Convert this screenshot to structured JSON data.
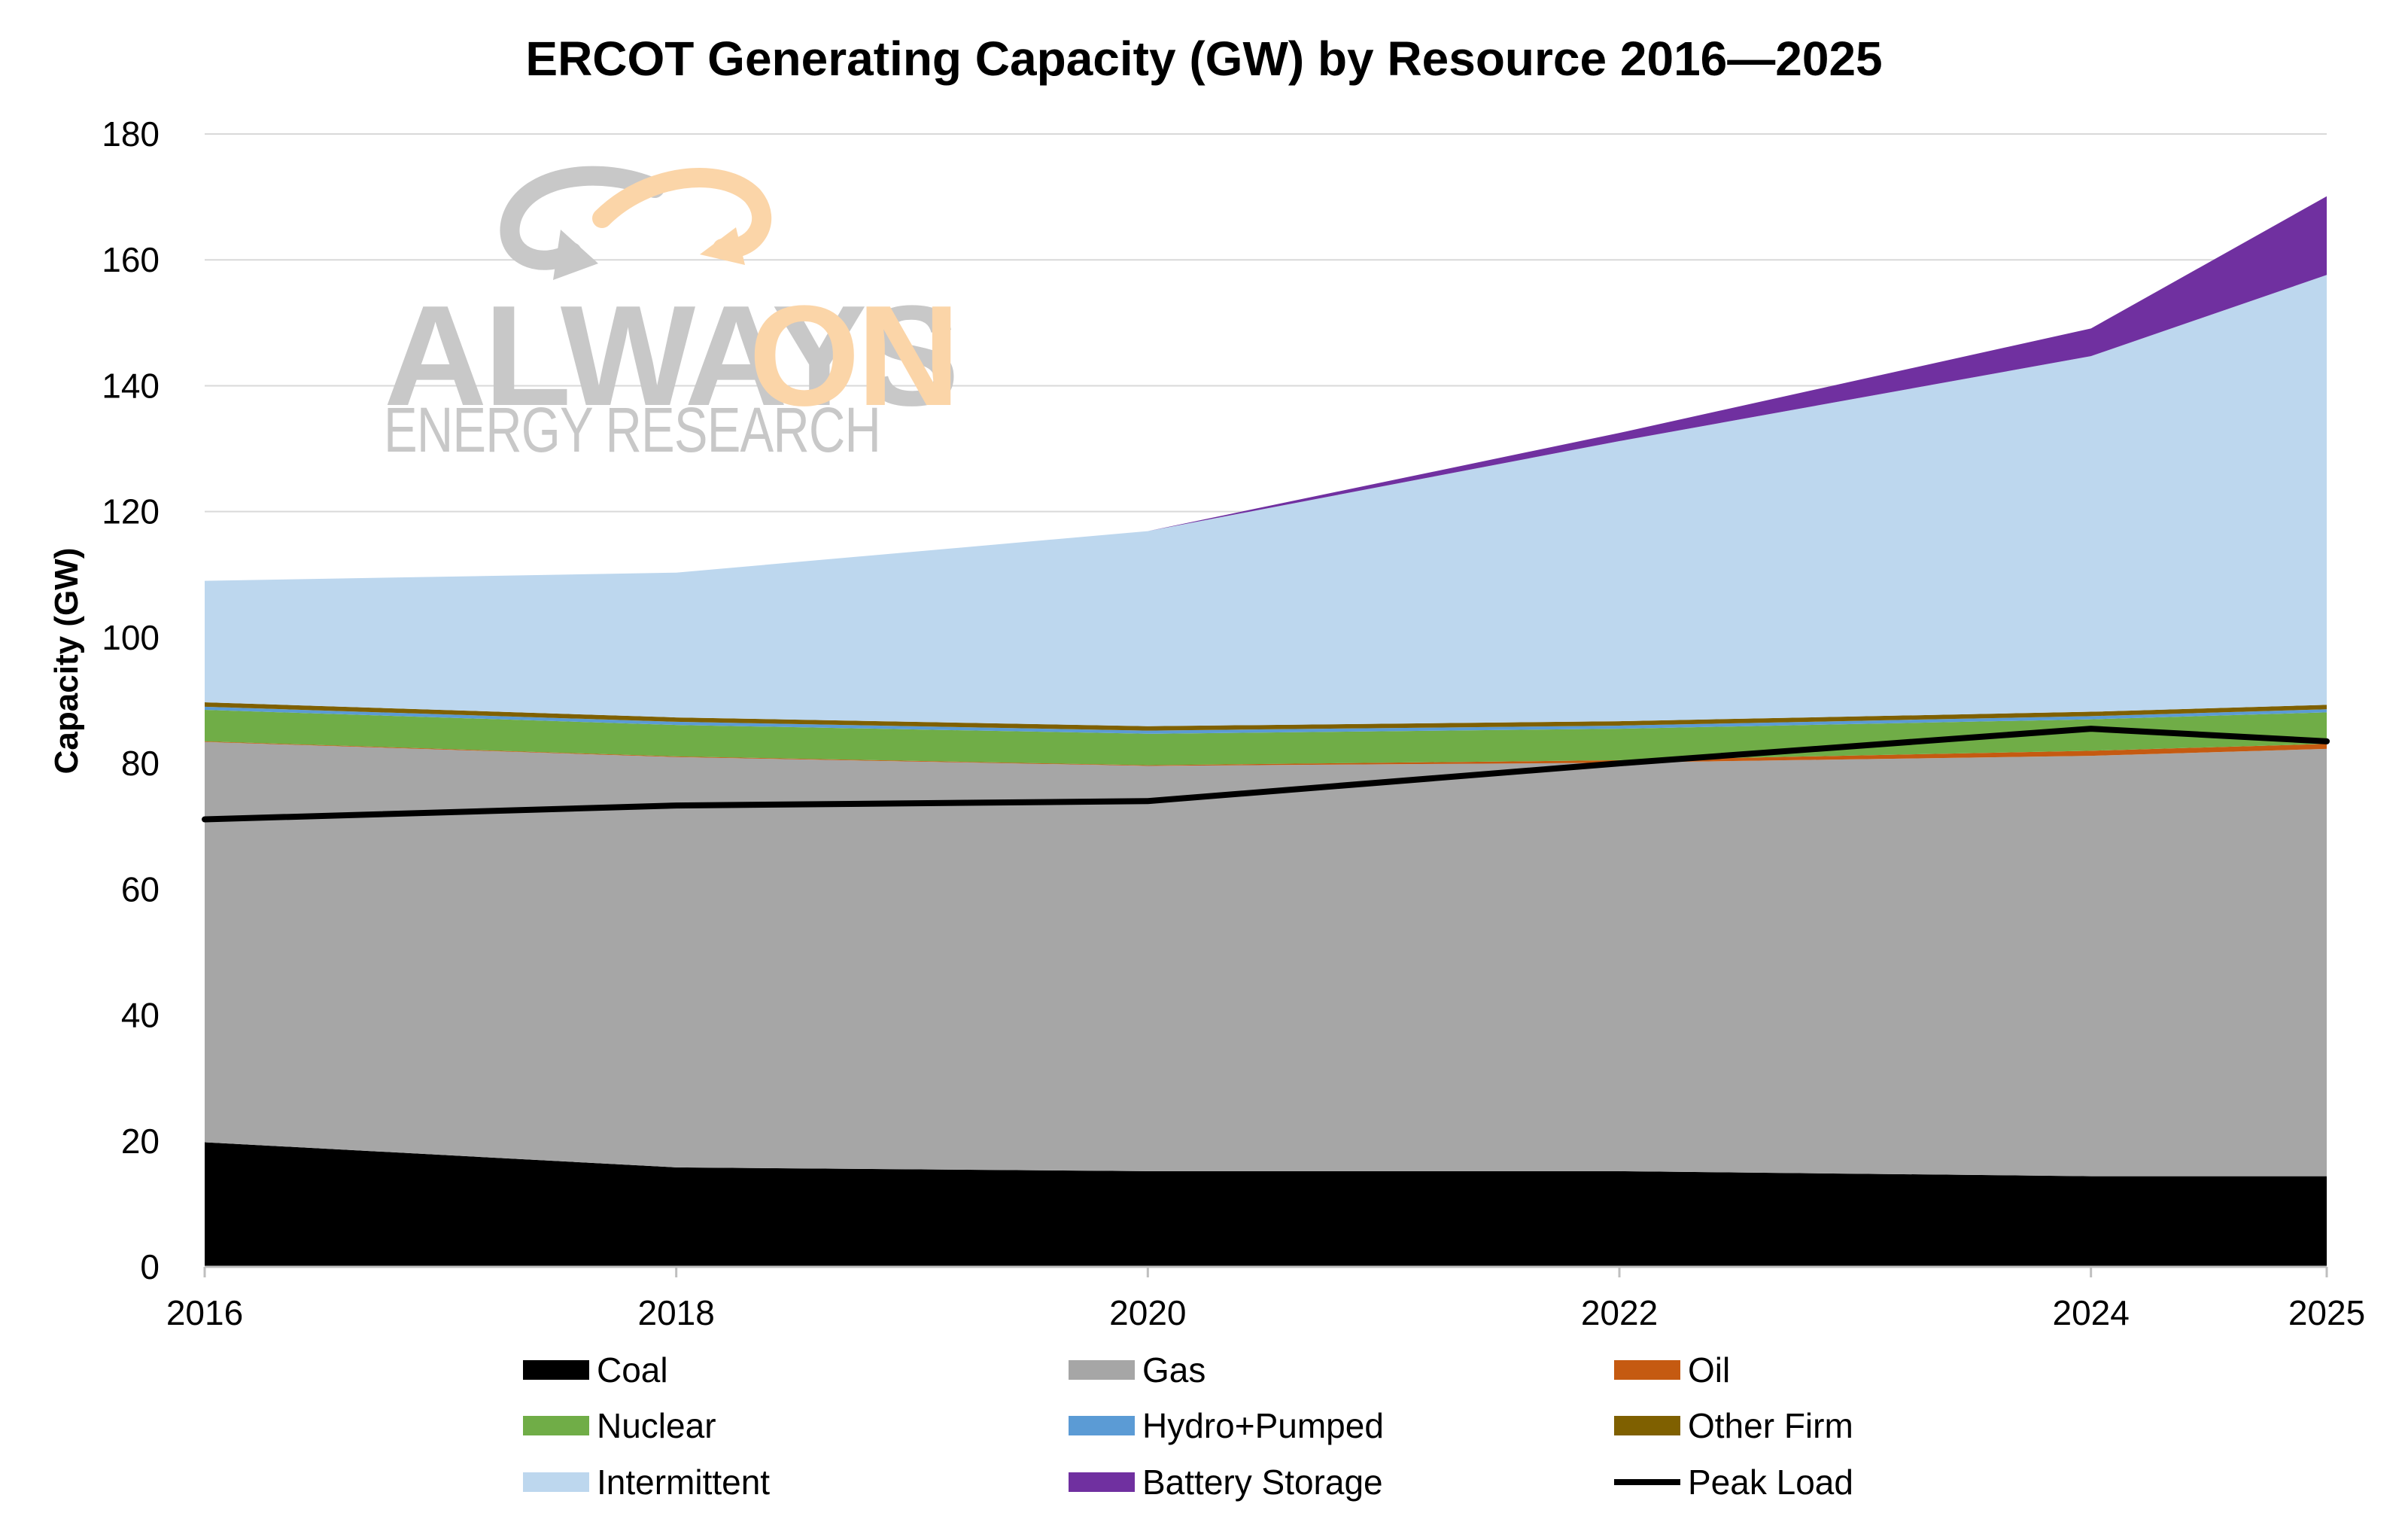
{
  "chart_data": {
    "type": "area",
    "stacked": true,
    "title": "ERCOT Generating Capacity (GW) by Resource 2016—2025",
    "xlabel": "",
    "ylabel": "Capacity (GW)",
    "ylim": [
      0,
      180
    ],
    "yticks": [
      0,
      20,
      40,
      60,
      80,
      100,
      120,
      140,
      160,
      180
    ],
    "categories": [
      "2016",
      "2018",
      "2020",
      "2022",
      "2024",
      "2025"
    ],
    "grid": "horizontal",
    "legend_position": "bottom",
    "series": [
      {
        "name": "Coal",
        "color": "#000000",
        "values": [
          19.8,
          15.8,
          15.2,
          15.2,
          14.4,
          14.4
        ]
      },
      {
        "name": "Gas",
        "color": "#a6a6a6",
        "values": [
          63.6,
          65.2,
          64.4,
          64.9,
          66.8,
          67.9
        ]
      },
      {
        "name": "Oil",
        "color": "#c55a11",
        "values": [
          0.1,
          0.1,
          0.1,
          0.4,
          0.8,
          0.8
        ]
      },
      {
        "name": "Nuclear",
        "color": "#70ad47",
        "values": [
          5.0,
          5.0,
          5.0,
          5.0,
          5.0,
          5.0
        ]
      },
      {
        "name": "Hydro+Pumped",
        "color": "#5b9bd5",
        "values": [
          0.5,
          0.5,
          0.5,
          0.5,
          0.5,
          0.5
        ]
      },
      {
        "name": "Other Firm",
        "color": "#7f6000",
        "values": [
          0.7,
          0.7,
          0.7,
          0.7,
          0.7,
          0.7
        ]
      },
      {
        "name": "Intermittent",
        "color": "#bdd7ee",
        "values": [
          19.3,
          23.0,
          31.0,
          44.5,
          56.5,
          68.3
        ]
      },
      {
        "name": "Battery Storage",
        "color": "#7030a0",
        "values": [
          0.0,
          0.0,
          0.0,
          1.3,
          4.4,
          12.5
        ]
      }
    ],
    "line_series": [
      {
        "name": "Peak Load",
        "color": "#000000",
        "values": [
          71.1,
          73.3,
          74.0,
          80.0,
          85.5,
          83.5
        ]
      }
    ],
    "legend": [
      {
        "name": "Coal",
        "color": "#000000",
        "kind": "area"
      },
      {
        "name": "Gas",
        "color": "#a6a6a6",
        "kind": "area"
      },
      {
        "name": "Oil",
        "color": "#c55a11",
        "kind": "area"
      },
      {
        "name": "Nuclear",
        "color": "#70ad47",
        "kind": "area"
      },
      {
        "name": "Hydro+Pumped",
        "color": "#5b9bd5",
        "kind": "area"
      },
      {
        "name": "Other Firm",
        "color": "#7f6000",
        "kind": "area"
      },
      {
        "name": "Intermittent",
        "color": "#bdd7ee",
        "kind": "area"
      },
      {
        "name": "Battery Storage",
        "color": "#7030a0",
        "kind": "area"
      },
      {
        "name": "Peak Load",
        "color": "#000000",
        "kind": "line"
      }
    ]
  },
  "watermark": {
    "line1_part1": "ALWAYS",
    "line1_part2": "ON",
    "line2": "ENERGY RESEARCH",
    "color_gray": "#c8c8c8",
    "color_orange": "#fbd5a8"
  }
}
